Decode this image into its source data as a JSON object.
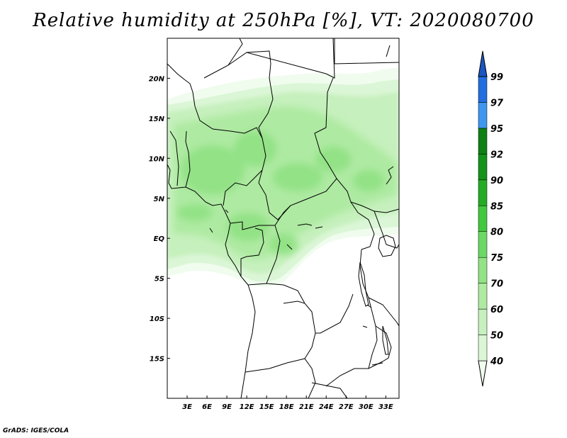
{
  "title": "Relative humidity at 250hPa [%], VT: 2020080700",
  "footer": "GrADS: IGES/COLA",
  "map": {
    "lon_range": [
      0,
      35
    ],
    "lat_range": [
      -20,
      25
    ],
    "x_ticks": [
      {
        "lon": 3,
        "label": "3E"
      },
      {
        "lon": 6,
        "label": "6E"
      },
      {
        "lon": 9,
        "label": "9E"
      },
      {
        "lon": 12,
        "label": "12E"
      },
      {
        "lon": 15,
        "label": "15E"
      },
      {
        "lon": 18,
        "label": "18E"
      },
      {
        "lon": 21,
        "label": "21E"
      },
      {
        "lon": 24,
        "label": "24E"
      },
      {
        "lon": 27,
        "label": "27E"
      },
      {
        "lon": 30,
        "label": "30E"
      },
      {
        "lon": 33,
        "label": "33E"
      }
    ],
    "y_ticks": [
      {
        "lat": 20,
        "label": "20N"
      },
      {
        "lat": 15,
        "label": "15N"
      },
      {
        "lat": 10,
        "label": "10N"
      },
      {
        "lat": 5,
        "label": "5N"
      },
      {
        "lat": 0,
        "label": "EQ"
      },
      {
        "lat": -5,
        "label": "5S"
      },
      {
        "lat": -10,
        "label": "10S"
      },
      {
        "lat": -15,
        "label": "15S"
      }
    ]
  },
  "colorbar": {
    "bins": [
      {
        "color": "#f0fcee",
        "label": "40"
      },
      {
        "color": "#dbf6d6",
        "label": "50"
      },
      {
        "color": "#c6f0bd",
        "label": "60"
      },
      {
        "color": "#aeeaa2",
        "label": "70"
      },
      {
        "color": "#93e286",
        "label": "75"
      },
      {
        "color": "#6dd865",
        "label": "80"
      },
      {
        "color": "#42c83e",
        "label": "85"
      },
      {
        "color": "#24ac24",
        "label": "90"
      },
      {
        "color": "#14921a",
        "label": "92"
      },
      {
        "color": "#0f8014",
        "label": "95"
      },
      {
        "color": "#3f96ee",
        "label": "97"
      },
      {
        "color": "#226ee0",
        "label": "99"
      },
      {
        "color": "#1a55c0",
        "label": ""
      }
    ]
  }
}
